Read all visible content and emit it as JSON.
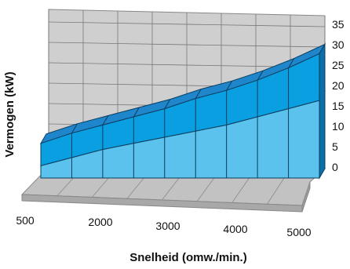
{
  "chart_data": {
    "type": "area",
    "title": "",
    "xlabel": "Snelheid (omw./min.)",
    "ylabel": "Vermogen (kW)",
    "x_ticks": [
      "500",
      "2000",
      "3000",
      "4000",
      "5000"
    ],
    "y_ticks": [
      "0",
      "5",
      "10",
      "15",
      "20",
      "25",
      "30",
      "35"
    ],
    "ylim": [
      0,
      35
    ],
    "x": [
      500,
      1000,
      1500,
      2000,
      2500,
      3000,
      3500,
      4000,
      4500,
      5000
    ],
    "series": [
      {
        "values": [
          3,
          5,
          7,
          8.5,
          10,
          11.5,
          13,
          15,
          17,
          19
        ]
      },
      {
        "values": [
          8.5,
          11,
          13,
          15,
          17,
          19.5,
          21.5,
          24,
          27,
          30.5
        ]
      }
    ],
    "style": "3d-stacked-area",
    "grid": true,
    "colors": {
      "upper_front": "#0a9fe0",
      "upper_top": "#1f86cc",
      "lower_front": "#5ac2ec",
      "lower_top": "#86d3f3",
      "side_dark": "#0d6fa8",
      "wall": "#cfcfcf",
      "floor": "#c2c2c2",
      "grid_line": "#777777"
    }
  }
}
